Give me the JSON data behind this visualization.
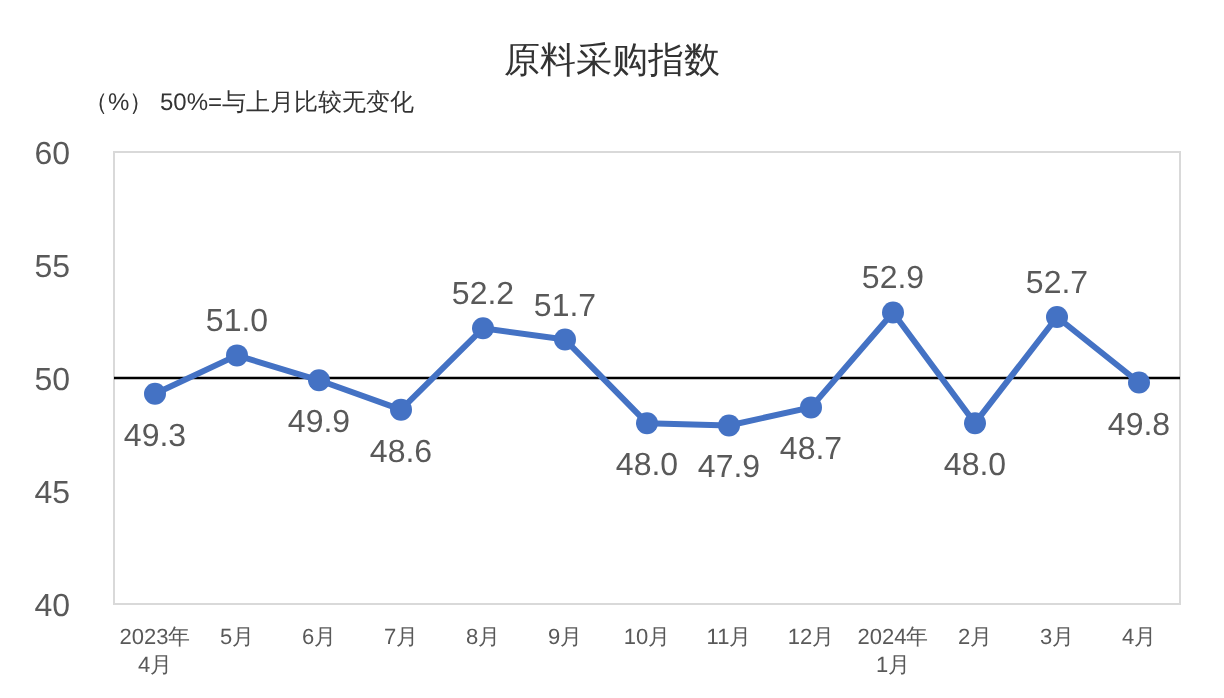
{
  "chart_data": {
    "type": "line",
    "title": "原料采购指数",
    "annotations": [
      "（%）  50%=与上月比较无变化"
    ],
    "categories": [
      "2023年\n4月",
      "5月",
      "6月",
      "7月",
      "8月",
      "9月",
      "10月",
      "11月",
      "12月",
      "2024年\n1月",
      "2月",
      "3月",
      "4月"
    ],
    "series": [
      {
        "color": "#4472c4",
        "values": [
          49.3,
          51.0,
          49.9,
          48.6,
          52.2,
          51.7,
          48.0,
          47.9,
          48.7,
          52.9,
          48.0,
          52.7,
          49.8
        ],
        "value_labels": [
          "49.3",
          "51.0",
          "49.9",
          "48.6",
          "52.2",
          "51.7",
          "48.0",
          "47.9",
          "48.7",
          "52.9",
          "48.0",
          "52.7",
          "49.8"
        ]
      }
    ],
    "ylim": [
      40,
      60
    ],
    "yticks": [
      40,
      45,
      50,
      55,
      60
    ],
    "ref_lines": [
      {
        "axis": "y",
        "value": 50,
        "color": "#000000"
      }
    ],
    "marker": "circle",
    "line_style": "solid",
    "grid": false
  }
}
